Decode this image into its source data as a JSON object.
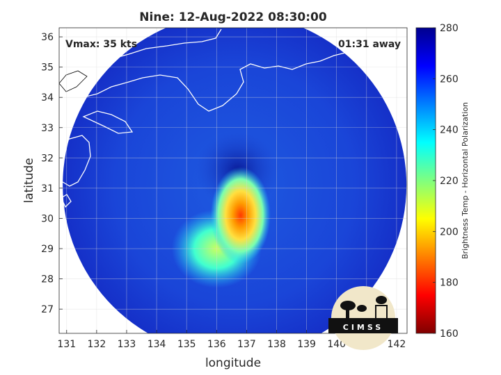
{
  "chart_data": {
    "type": "heatmap",
    "title": "Nine: 12-Aug-2022 08:30:00",
    "xlabel": "longitude",
    "ylabel": "latitude",
    "xlim": [
      130.75,
      142.35
    ],
    "ylim": [
      26.2,
      36.3
    ],
    "xticks": [
      131,
      132,
      133,
      134,
      135,
      136,
      137,
      138,
      139,
      140,
      141,
      142
    ],
    "yticks": [
      27,
      28,
      29,
      30,
      31,
      32,
      33,
      34,
      35,
      36
    ],
    "grid": true,
    "colorbar": {
      "label": "Brightness Temp - Horizontal Polarization",
      "min": 160,
      "max": 280,
      "ticks": [
        160,
        180,
        200,
        220,
        240,
        260,
        280
      ],
      "colormap": "jet"
    },
    "annotations": {
      "vmax": "Vmax: 35 kts",
      "time_offset": "01:31 away"
    },
    "swath": {
      "center_lon": 136.6,
      "center_lat": 31.1,
      "radius_deg": 5.7,
      "background_tb": 265
    },
    "features": [
      {
        "name": "eye",
        "lon": 136.7,
        "lat": 31.6,
        "tb": 272
      },
      {
        "name": "convection-core",
        "lon": 136.8,
        "lat": 30.1,
        "tb": 190
      },
      {
        "name": "convection-band",
        "lon": 136.0,
        "lat": 29.0,
        "tb": 225
      }
    ],
    "logo_text": "CIMSS"
  }
}
